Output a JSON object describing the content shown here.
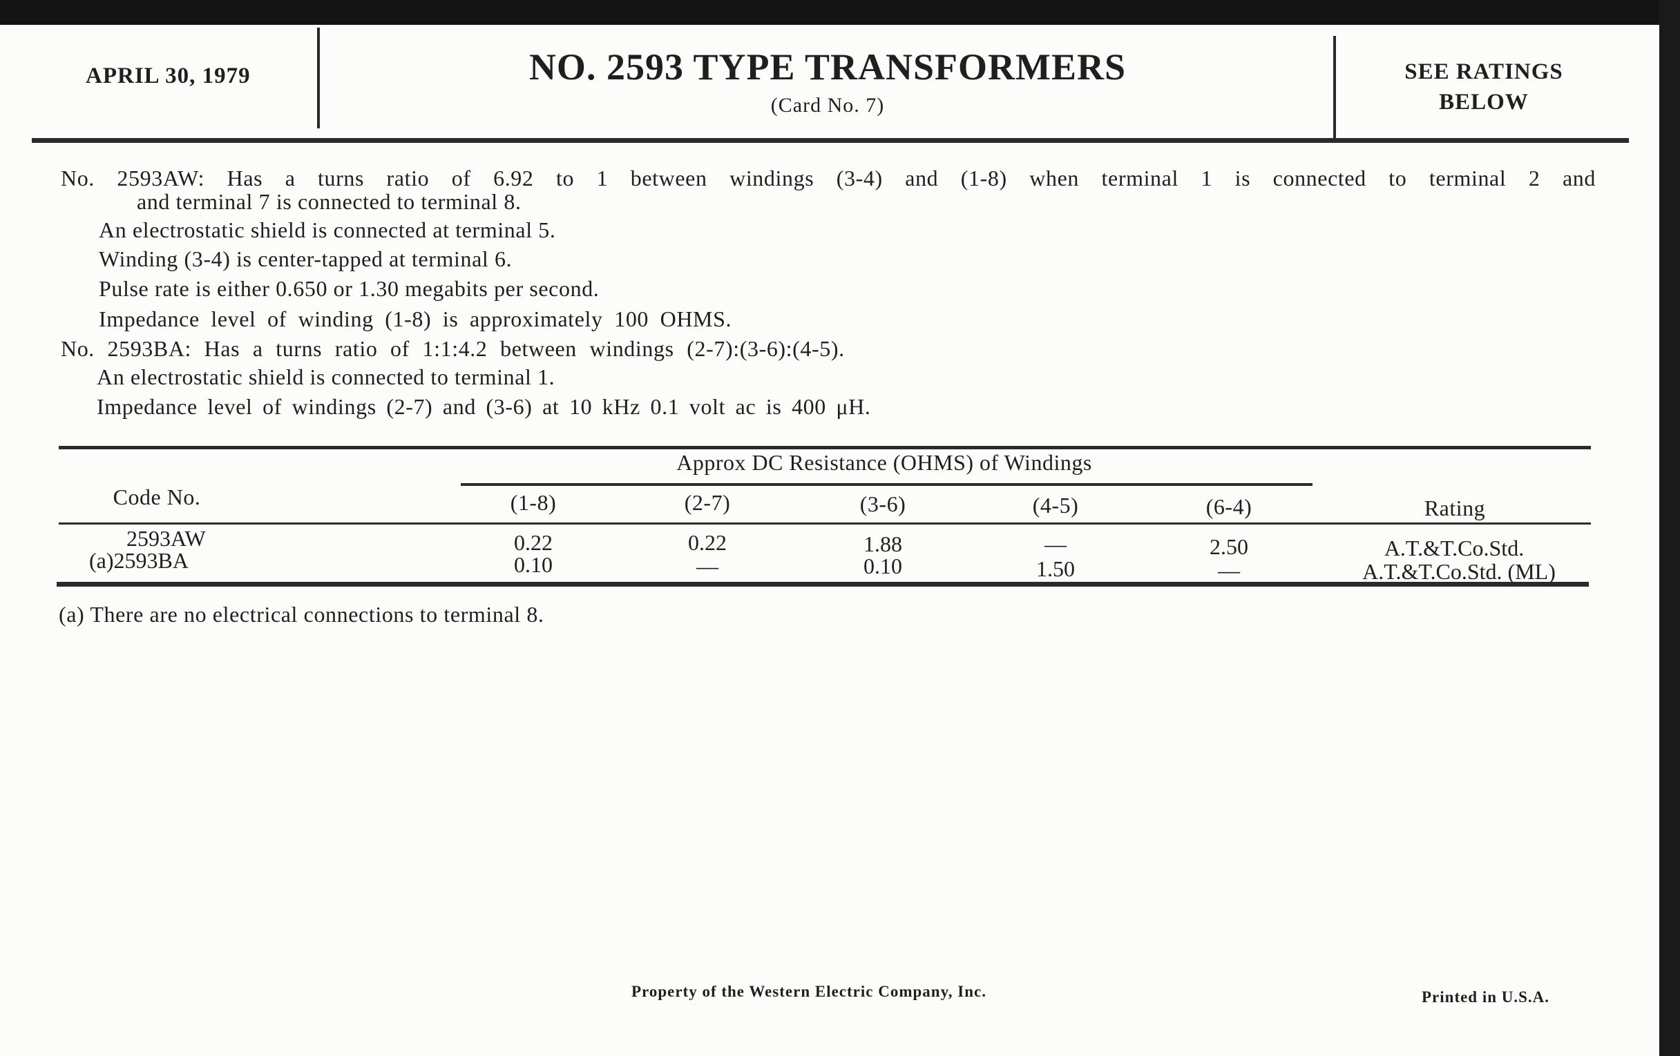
{
  "header": {
    "date": "APRIL 30, 1979",
    "title": "NO. 2593 TYPE TRANSFORMERS",
    "card": "(Card No. 7)",
    "ratings_note_line1": "SEE RATINGS",
    "ratings_note_line2": "BELOW"
  },
  "body": {
    "aw_line1": "No. 2593AW: Has a turns ratio of 6.92 to 1 between windings (3-4) and (1-8) when terminal 1 is connected to terminal 2 and",
    "aw_line2": "and terminal 7 is connected to terminal 8.",
    "aw_shield": "An electrostatic shield is connected at terminal 5.",
    "aw_winding": "Winding (3-4) is center-tapped at terminal 6.",
    "aw_pulse": "Pulse rate is either 0.650 or 1.30 megabits per second.",
    "aw_impedance": "Impedance level of winding (1-8) is approximately 100 OHMS.",
    "ba_line1": "No. 2593BA: Has a turns ratio of 1:1:4.2 between windings (2-7):(3-6):(4-5).",
    "ba_shield": "An electrostatic shield is connected to terminal 1.",
    "ba_impedance": "Impedance level of windings (2-7) and (3-6) at 10 kHz 0.1 volt ac is 400 μH."
  },
  "table": {
    "group_header": "Approx DC Resistance (OHMS) of Windings",
    "code_header": "Code No.",
    "rating_header": "Rating",
    "columns": [
      "(1-8)",
      "(2-7)",
      "(3-6)",
      "(4-5)",
      "(6-4)"
    ],
    "rows": [
      {
        "code": "2593AW",
        "values": [
          "0.22",
          "0.22",
          "1.88",
          "—",
          "2.50"
        ],
        "rating": "A.T.&T.Co.Std."
      },
      {
        "code": "(a)2593BA",
        "values": [
          "0.10",
          "—",
          "0.10",
          "1.50",
          "—"
        ],
        "rating": "A.T.&T.Co.Std. (ML)"
      }
    ]
  },
  "footnote": "(a) There are no electrical connections to terminal 8.",
  "footer": {
    "property": "Property of the Western Electric Company, Inc.",
    "printed": "Printed in U.S.A."
  }
}
